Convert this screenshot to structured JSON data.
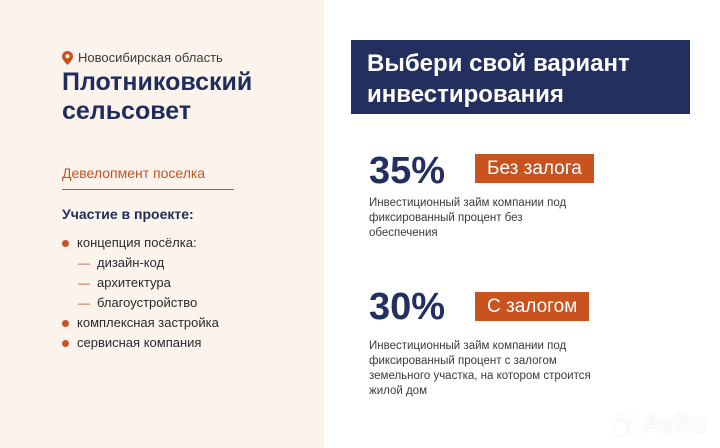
{
  "left": {
    "location": "Новосибирская область",
    "title": "Плотниковский сельсовет",
    "development_label": "Девелопмент поселка",
    "participation_heading": "Участие в проекте:",
    "items": [
      {
        "label": "концепция посёлка:",
        "level": 1
      },
      {
        "label": "дизайн-код",
        "level": 2
      },
      {
        "label": "архитектура",
        "level": 2
      },
      {
        "label": "благоустройство",
        "level": 2
      },
      {
        "label": "комплексная застройка",
        "level": 1
      },
      {
        "label": "сервисная компания",
        "level": 1
      }
    ]
  },
  "right": {
    "heading": "Выбери свой вариант инвестирования",
    "options": [
      {
        "percent": "35%",
        "badge": "Без залога",
        "description": "Инвестиционный займ компании под фиксированный процент без обеспечения"
      },
      {
        "percent": "30%",
        "badge": "С залогом",
        "description": "Инвестиционный займ компании под фиксированный процент с залогом земельного участка, на котором строится жилой дом"
      }
    ]
  },
  "watermark": "Avito",
  "colors": {
    "accent": "#c8531f",
    "navy": "#23305f",
    "left_bg": "#fbf3ec"
  }
}
